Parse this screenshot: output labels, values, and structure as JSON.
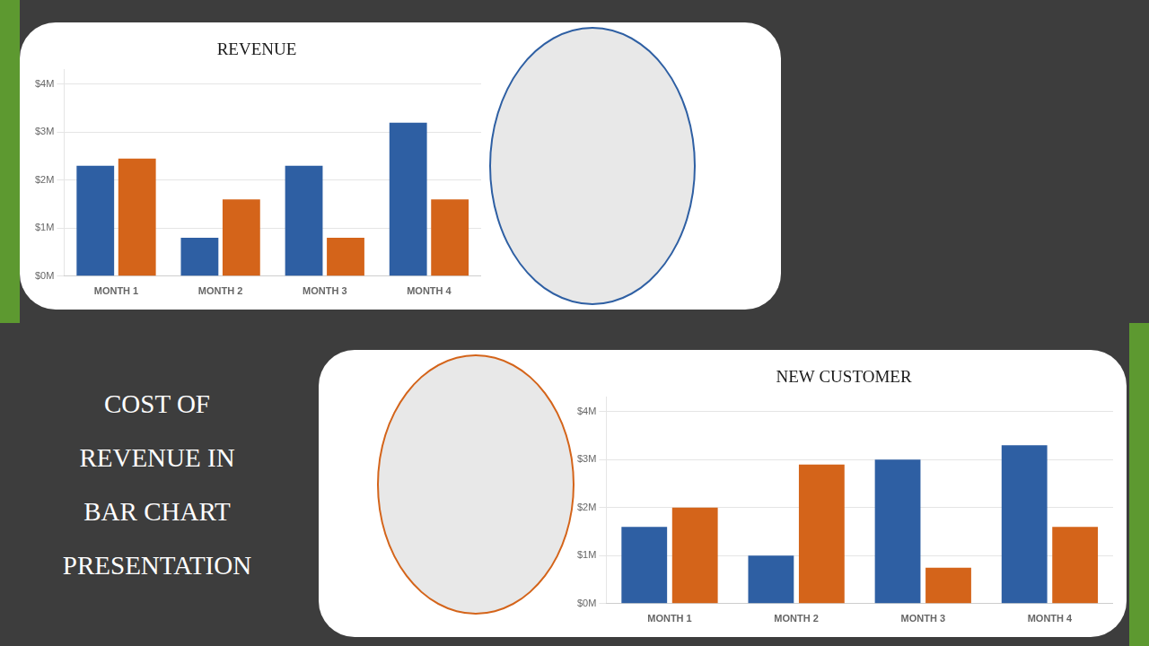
{
  "chart_data": [
    {
      "type": "bar",
      "title": "REVENUE",
      "categories": [
        "MONTH 1",
        "MONTH 2",
        "MONTH 3",
        "MONTH 4"
      ],
      "series": [
        {
          "color": "#2e5fa3",
          "values": [
            2.3,
            0.8,
            2.3,
            3.2
          ]
        },
        {
          "color": "#d4641a",
          "values": [
            2.45,
            1.6,
            0.8,
            1.6
          ]
        }
      ],
      "ylim": [
        0,
        4.3
      ],
      "yticks": [
        {
          "value": 0,
          "label": "$0M"
        },
        {
          "value": 1,
          "label": "$1M"
        },
        {
          "value": 2,
          "label": "$2M"
        },
        {
          "value": 3,
          "label": "$3M"
        },
        {
          "value": 4,
          "label": "$4M"
        }
      ],
      "grid": true,
      "annotations": [
        "COST OF",
        "REVENUE IN",
        "BAR CHART",
        "PRESENTATION"
      ]
    },
    {
      "type": "bar",
      "title": "NEW CUSTOMER",
      "categories": [
        "MONTH 1",
        "MONTH 2",
        "MONTH 3",
        "MONTH 4"
      ],
      "series": [
        {
          "color": "#2e5fa3",
          "values": [
            1.6,
            1.0,
            3.0,
            3.3
          ]
        },
        {
          "color": "#d4641a",
          "values": [
            2.0,
            2.9,
            0.75,
            1.6
          ]
        }
      ],
      "ylim": [
        0,
        4.3
      ],
      "yticks": [
        {
          "value": 0,
          "label": "$0M"
        },
        {
          "value": 1,
          "label": "$1M"
        },
        {
          "value": 2,
          "label": "$2M"
        },
        {
          "value": 3,
          "label": "$3M"
        },
        {
          "value": 4,
          "label": "$4M"
        }
      ],
      "grid": true
    }
  ]
}
